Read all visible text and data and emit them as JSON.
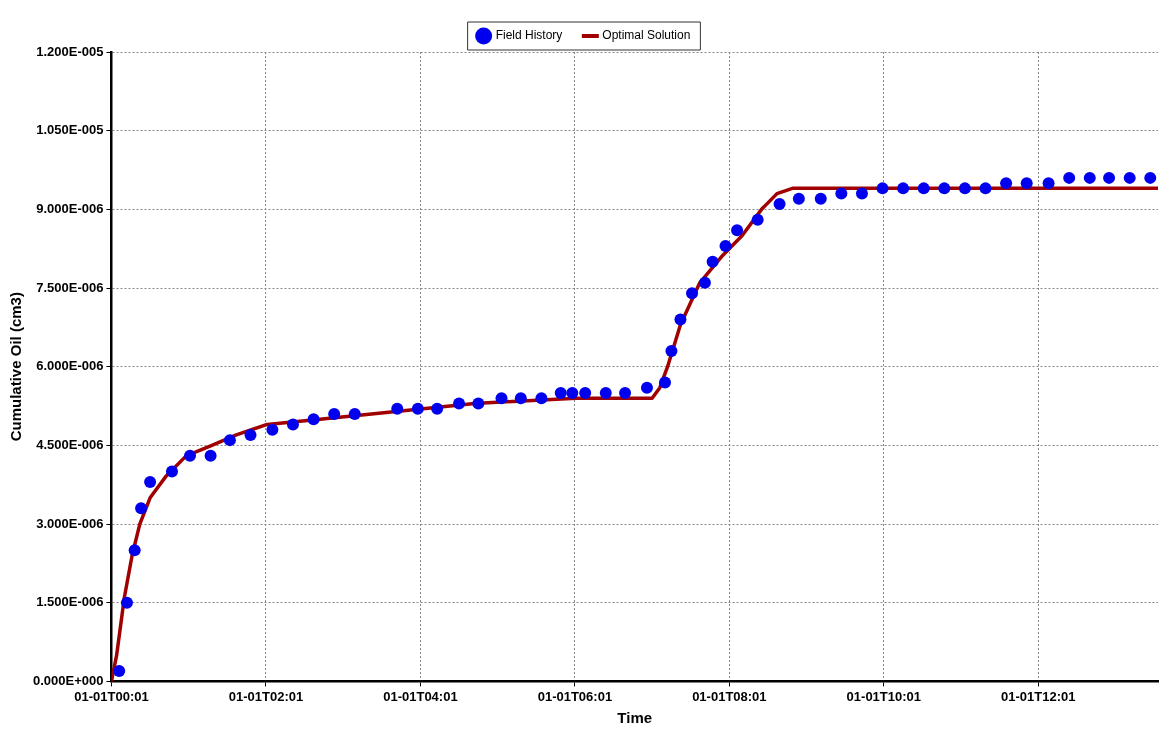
{
  "chart_data": {
    "type": "scatter",
    "xlabel": "Time",
    "ylabel": "Cumulative Oil (cm3)",
    "xlim": [
      "--01-01T00:01",
      "--01-01T13:34"
    ],
    "xticks": [
      {
        "value": "--01-01T00:01",
        "label": "01-01T00:01"
      },
      {
        "value": "--01-01T02:01",
        "label": "01-01T02:01"
      },
      {
        "value": "--01-01T04:01",
        "label": "01-01T04:01"
      },
      {
        "value": "--01-01T06:01",
        "label": "01-01T06:01"
      },
      {
        "value": "--01-01T08:01",
        "label": "01-01T08:01"
      },
      {
        "value": "--01-01T10:01",
        "label": "01-01T10:01"
      },
      {
        "value": "--01-01T12:01",
        "label": "01-01T12:01"
      }
    ],
    "ylim": [
      0,
      1.2e-05
    ],
    "yticks": [
      {
        "value": 0,
        "label": "0.000E+000"
      },
      {
        "value": 1.5e-06,
        "label": "1.500E-006"
      },
      {
        "value": 3e-06,
        "label": "3.000E-006"
      },
      {
        "value": 4.5e-06,
        "label": "4.500E-006"
      },
      {
        "value": 6e-06,
        "label": "6.000E-006"
      },
      {
        "value": 7.5e-06,
        "label": "7.500E-006"
      },
      {
        "value": 9e-06,
        "label": "9.000E-006"
      },
      {
        "value": 1.05e-05,
        "label": "1.050E-005"
      },
      {
        "value": 1.2e-05,
        "label": "1.200E-005"
      }
    ],
    "grid": true,
    "legend": "top",
    "series": [
      {
        "name": "Field History",
        "marker": "circle",
        "color": "#0000ee",
        "x": [
          "--01-01T00:07",
          "--01-01T00:13",
          "--01-01T00:19",
          "--01-01T00:24",
          "--01-01T00:31",
          "--01-01T00:48",
          "--01-01T01:02",
          "--01-01T01:18",
          "--01-01T01:33",
          "--01-01T01:49",
          "--01-01T02:06",
          "--01-01T02:22",
          "--01-01T02:38",
          "--01-01T02:54",
          "--01-01T03:10",
          "--01-01T03:43",
          "--01-01T03:59",
          "--01-01T04:14",
          "--01-01T04:31",
          "--01-01T04:46",
          "--01-01T05:04",
          "--01-01T05:19",
          "--01-01T05:35",
          "--01-01T05:50",
          "--01-01T05:59",
          "--01-01T06:09",
          "--01-01T06:25",
          "--01-01T06:40",
          "--01-01T06:57",
          "--01-01T07:11",
          "--01-01T07:16",
          "--01-01T07:23",
          "--01-01T07:32",
          "--01-01T07:42",
          "--01-01T07:48",
          "--01-01T07:58",
          "--01-01T08:07",
          "--01-01T08:23",
          "--01-01T08:40",
          "--01-01T08:55",
          "--01-01T09:12",
          "--01-01T09:28",
          "--01-01T09:44",
          "--01-01T10:00",
          "--01-01T10:16",
          "--01-01T10:32",
          "--01-01T10:48",
          "--01-01T11:04",
          "--01-01T11:20",
          "--01-01T11:36",
          "--01-01T11:52",
          "--01-01T12:09",
          "--01-01T12:25",
          "--01-01T12:41",
          "--01-01T12:56",
          "--01-01T13:12",
          "--01-01T13:28"
        ],
        "values": [
          2e-07,
          1.5e-06,
          2.5e-06,
          3.3e-06,
          3.8e-06,
          4e-06,
          4.3e-06,
          4.3e-06,
          4.6e-06,
          4.7e-06,
          4.8e-06,
          4.9e-06,
          5e-06,
          5.1e-06,
          5.1e-06,
          5.2e-06,
          5.2e-06,
          5.2e-06,
          5.3e-06,
          5.3e-06,
          5.4e-06,
          5.4e-06,
          5.4e-06,
          5.5e-06,
          5.5e-06,
          5.5e-06,
          5.5e-06,
          5.5e-06,
          5.6e-06,
          5.7e-06,
          6.3e-06,
          6.9e-06,
          7.4e-06,
          7.6e-06,
          8e-06,
          8.3e-06,
          8.6e-06,
          8.8e-06,
          9.1e-06,
          9.2e-06,
          9.2e-06,
          9.3e-06,
          9.3e-06,
          9.4e-06,
          9.4e-06,
          9.4e-06,
          9.4e-06,
          9.4e-06,
          9.4e-06,
          9.5e-06,
          9.5e-06,
          9.5e-06,
          9.6e-06,
          9.6e-06,
          9.6e-06,
          9.6e-06,
          9.6e-06
        ]
      },
      {
        "name": "Optimal Solution",
        "type": "line",
        "marker": "none",
        "color": "#a00000",
        "x": [
          "--01-01T00:01",
          "--01-01T00:05",
          "--01-01T00:11",
          "--01-01T00:17",
          "--01-01T00:23",
          "--01-01T00:31",
          "--01-01T00:43",
          "--01-01T00:59",
          "--01-01T01:19",
          "--01-01T01:38",
          "--01-01T02:02",
          "--01-01T02:43",
          "--01-01T03:23",
          "--01-01T04:43",
          "--01-01T06:02",
          "--01-01T07:01",
          "--01-01T07:07",
          "--01-01T07:13",
          "--01-01T07:23",
          "--01-01T07:38",
          "--01-01T07:55",
          "--01-01T08:11",
          "--01-01T08:26",
          "--01-01T08:38",
          "--01-01T08:50",
          "--01-01T09:07",
          "--01-01T13:34"
        ],
        "values": [
          0,
          5e-07,
          1.6e-06,
          2.4e-06,
          3e-06,
          3.5e-06,
          3.9e-06,
          4.3e-06,
          4.5e-06,
          4.7e-06,
          4.9e-06,
          5e-06,
          5.1e-06,
          5.3e-06,
          5.4e-06,
          5.4e-06,
          5.6e-06,
          6e-06,
          6.8e-06,
          7.6e-06,
          8.1e-06,
          8.5e-06,
          9e-06,
          9.3e-06,
          9.4e-06,
          9.4e-06,
          9.4e-06
        ]
      }
    ]
  }
}
